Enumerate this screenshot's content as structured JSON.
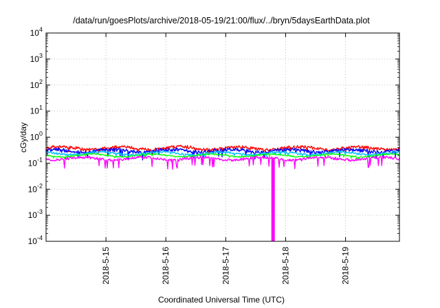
{
  "chart_data": {
    "type": "line",
    "title": "/data/run/goesPlots/archive/2018-05-19/21:00/flux/../bryn/5daysEarthData.plot",
    "xlabel": "Coordinated Universal Time (UTC)",
    "ylabel": "cGy/day",
    "yscale": "log",
    "ylim": [
      0.0001,
      10000
    ],
    "xlim": [
      0,
      5.9
    ],
    "grid": true,
    "x_ticks": [
      {
        "x": 1.0,
        "label": "2018-5-15"
      },
      {
        "x": 2.0,
        "label": "2018-5-16"
      },
      {
        "x": 3.0,
        "label": "2018-5-17"
      },
      {
        "x": 4.0,
        "label": "2018-5-18"
      },
      {
        "x": 5.0,
        "label": "2018-5-19"
      }
    ],
    "y_ticks": [
      {
        "y": 0.0001,
        "base": "10",
        "exp": "-4"
      },
      {
        "y": 0.001,
        "base": "10",
        "exp": "-3"
      },
      {
        "y": 0.01,
        "base": "10",
        "exp": "-2"
      },
      {
        "y": 0.1,
        "base": "10",
        "exp": "-1"
      },
      {
        "y": 1,
        "base": "10",
        "exp": "0"
      },
      {
        "y": 10,
        "base": "10",
        "exp": "1"
      },
      {
        "y": 100,
        "base": "10",
        "exp": "2"
      },
      {
        "y": 1000,
        "base": "10",
        "exp": "3"
      },
      {
        "y": 10000,
        "base": "10",
        "exp": "4"
      }
    ],
    "series": [
      {
        "color": "#ff0000",
        "level": 0.38,
        "noise": 0.12,
        "min_ratio": 0.75
      },
      {
        "color": "#0000ff",
        "level": 0.3,
        "noise": 0.14,
        "min_ratio": 0.6
      },
      {
        "color": "#00bfff",
        "level": 0.24,
        "noise": 0.08,
        "min_ratio": 0.8
      },
      {
        "color": "#00ff00",
        "level": 0.2,
        "noise": 0.05,
        "min_ratio": 0.85
      },
      {
        "color": "#ff00ff",
        "level": 0.15,
        "noise": 0.1,
        "min_ratio": 0.5
      }
    ],
    "annotations": [
      {
        "series": 4,
        "x": 3.79,
        "y": 0.0001,
        "note": "dropout"
      }
    ]
  }
}
